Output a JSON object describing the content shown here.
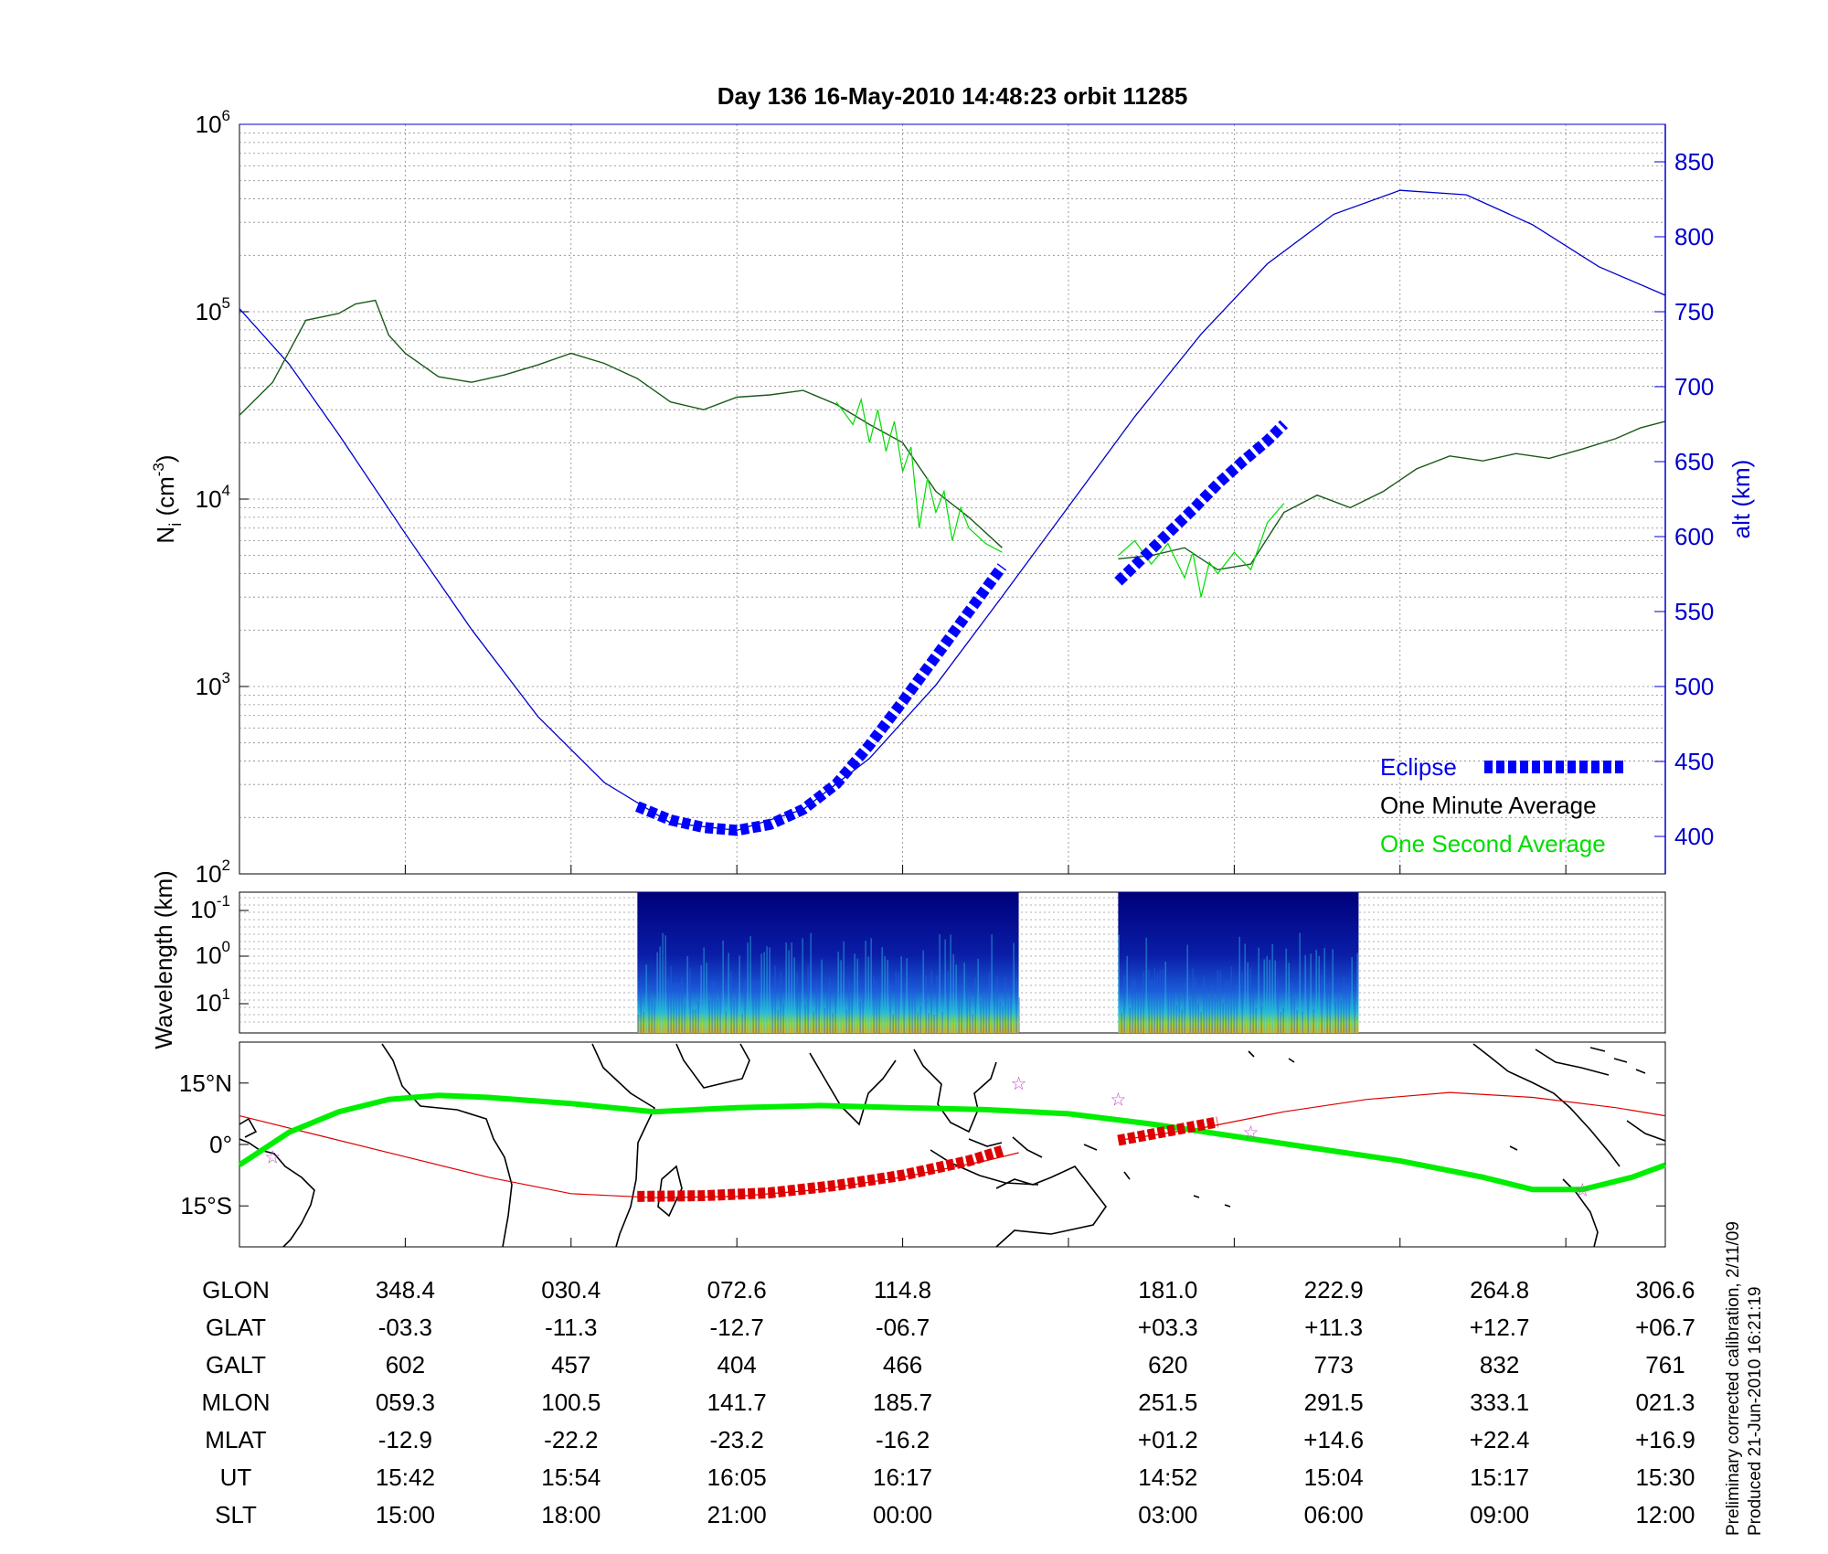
{
  "title": "Day 136  16-May-2010 14:48:23   orbit 11285",
  "footnote": {
    "line1": "Preliminary corrected calibration, 2/11/09",
    "line2": "Produced 21-Jun-2010 16:21:19"
  },
  "colors": {
    "altitude": "#0000cc",
    "eclipse": "#0000ff",
    "one_minute": "#000000",
    "one_second": "#00dd00",
    "track_red": "#dd0000",
    "track_green": "#00ee00",
    "stars": "#cc44cc"
  },
  "chart_data": [
    {
      "type": "line",
      "panel": "density",
      "ylabel": "N_i (cm^-3)",
      "ylabel_main": "N",
      "ylabel_sub": "i",
      "ylabel_unit": " (cm",
      "ylabel_exp": "-3",
      "ylabel_close": ")",
      "y_scale": "log",
      "ylim": [
        100,
        1000000
      ],
      "yticks": [
        {
          "base": "10",
          "exp": "2",
          "value": 100
        },
        {
          "base": "10",
          "exp": "3",
          "value": 1000
        },
        {
          "base": "10",
          "exp": "4",
          "value": 10000
        },
        {
          "base": "10",
          "exp": "5",
          "value": 100000
        },
        {
          "base": "10",
          "exp": "6",
          "value": 1000000
        }
      ],
      "y2label": "alt (km)",
      "y2lim": [
        375,
        875
      ],
      "y2ticks": [
        "400",
        "450",
        "500",
        "550",
        "600",
        "650",
        "700",
        "750",
        "800",
        "850"
      ],
      "xlim": [
        0,
        8.6
      ],
      "grid": true,
      "legend_position": "bottom-right",
      "legend": [
        "Eclipse",
        "One Minute Average",
        "One Second Average"
      ],
      "series": [
        {
          "role": "altitude",
          "x": [
            0,
            0.3,
            0.6,
            1,
            1.4,
            1.8,
            2.2,
            2.6,
            3,
            3.4,
            3.8,
            4.2,
            4.6,
            5,
            5.4,
            5.8,
            6.2,
            6.6,
            7,
            7.4,
            7.8,
            8.2,
            8.6
          ],
          "values": [
            752,
            715,
            668,
            602,
            538,
            480,
            436,
            409,
            404,
            418,
            452,
            501,
            560,
            620,
            680,
            735,
            782,
            815,
            831,
            828,
            808,
            780,
            761
          ]
        },
        {
          "role": "one_minute",
          "x": [
            0,
            0.2,
            0.4,
            0.6,
            0.7,
            0.82,
            0.9,
            1,
            1.2,
            1.4,
            1.6,
            1.8,
            2,
            2.2,
            2.4,
            2.6,
            2.8,
            3,
            3.2,
            3.4,
            3.6,
            3.8,
            4,
            4.2,
            4.4,
            4.6
          ],
          "values": [
            28000,
            42000,
            90000,
            98000,
            110000,
            115000,
            75000,
            60000,
            45000,
            42000,
            46000,
            52000,
            60000,
            53000,
            44000,
            33000,
            30000,
            35000,
            36000,
            38000,
            32000,
            25000,
            20000,
            11000,
            8000,
            5500
          ]
        },
        {
          "role": "one_minute",
          "x": [
            5.3,
            5.5,
            5.7,
            5.9,
            6.1,
            6.3,
            6.5,
            6.7,
            6.9,
            7.1,
            7.3,
            7.5,
            7.7,
            7.9,
            8.1,
            8.3,
            8.45,
            8.6
          ],
          "values": [
            4800,
            5000,
            5500,
            4200,
            4500,
            8500,
            10500,
            9000,
            11000,
            14500,
            17000,
            16000,
            17500,
            16500,
            18500,
            21000,
            24000,
            26000
          ]
        },
        {
          "role": "one_second",
          "x": [
            3.6,
            3.7,
            3.75,
            3.8,
            3.85,
            3.9,
            3.95,
            4,
            4.05,
            4.1,
            4.15,
            4.2,
            4.25,
            4.3,
            4.35,
            4.4,
            4.5,
            4.6
          ],
          "values": [
            33000,
            25000,
            34000,
            20000,
            30000,
            18000,
            26000,
            14000,
            19000,
            7000,
            13000,
            8500,
            11000,
            6000,
            9000,
            7000,
            5800,
            5200
          ]
        },
        {
          "role": "one_second",
          "x": [
            5.3,
            5.4,
            5.5,
            5.6,
            5.7,
            5.75,
            5.8,
            5.85,
            5.9,
            6,
            6.1,
            6.2,
            6.3
          ],
          "values": [
            5000,
            6000,
            4500,
            5800,
            3800,
            5200,
            3000,
            4600,
            4000,
            5200,
            4200,
            7500,
            9500
          ]
        },
        {
          "role": "eclipse",
          "x": [
            2.4,
            2.6,
            2.8,
            3,
            3.2,
            3.4,
            3.6,
            3.8,
            4,
            4.2,
            4.4,
            4.6
          ],
          "values": [
            420,
            411,
            406,
            404,
            408,
            418,
            435,
            461,
            490,
            520,
            550,
            580
          ]
        },
        {
          "role": "eclipse",
          "x": [
            5.3,
            5.45,
            5.6,
            5.75,
            5.9,
            6.05,
            6.2,
            6.3
          ],
          "values": [
            570,
            586,
            602,
            618,
            635,
            650,
            664,
            675
          ]
        }
      ]
    },
    {
      "type": "heatmap",
      "panel": "spectrogram",
      "ylabel": "Wavelength (km)",
      "y_scale": "log",
      "yticks": [
        {
          "base": "10",
          "exp": "-1"
        },
        {
          "base": "10",
          "exp": "0"
        },
        {
          "base": "10",
          "exp": "1"
        }
      ],
      "blocks_x": [
        [
          2.4,
          4.7
        ],
        [
          5.3,
          6.75
        ]
      ]
    },
    {
      "type": "line",
      "panel": "map",
      "yticks": [
        "15°N",
        "0°",
        "15°S"
      ],
      "ylim": [
        -25,
        25
      ],
      "xlim": [
        0,
        8.6
      ],
      "series": [
        {
          "role": "red_track",
          "x": [
            0,
            0.5,
            1,
            1.5,
            2,
            2.5,
            3,
            3.5,
            4,
            4.5,
            4.7
          ],
          "values": [
            7,
            2,
            -3,
            -8,
            -12,
            -13,
            -12.7,
            -11,
            -8,
            -4,
            -2
          ]
        },
        {
          "role": "red_track",
          "x": [
            5.3,
            5.8,
            6.3,
            6.8,
            7.3,
            7.8,
            8.3,
            8.6
          ],
          "values": [
            1,
            4,
            8,
            11,
            12.7,
            11.5,
            9,
            7
          ]
        },
        {
          "role": "green_track",
          "x": [
            0,
            0.3,
            0.6,
            0.9,
            1.2,
            1.5,
            2,
            2.5,
            3,
            3.5,
            4,
            4.5,
            5,
            5.5,
            6,
            6.5,
            7,
            7.5,
            7.8,
            8.1,
            8.4,
            8.6
          ],
          "values": [
            -5,
            3,
            8,
            11,
            12,
            11.5,
            10,
            8,
            9,
            9.5,
            9,
            8.5,
            7.5,
            5,
            2,
            -1,
            -4,
            -8,
            -11,
            -11,
            -8,
            -5
          ]
        },
        {
          "role": "red_bold",
          "x": [
            2.4,
            2.8,
            3.2,
            3.6,
            4,
            4.4,
            4.6
          ],
          "values": [
            -12.7,
            -12.5,
            -11.8,
            -10,
            -7.5,
            -4,
            -1.5
          ]
        },
        {
          "role": "red_bold",
          "x": [
            5.3,
            5.5,
            5.7,
            5.9
          ],
          "values": [
            1,
            2.5,
            4,
            5.5
          ]
        }
      ],
      "stars": [
        {
          "x": 0.2,
          "y": -3
        },
        {
          "x": 4.7,
          "y": 15
        },
        {
          "x": 5.3,
          "y": 11
        },
        {
          "x": 6.1,
          "y": 3
        },
        {
          "x": 8.1,
          "y": -11
        }
      ]
    },
    {
      "type": "table",
      "panel": "orbit-ephemeris",
      "rows": [
        {
          "label": "GLON",
          "values": [
            "348.4",
            "030.4",
            "072.6",
            "114.8",
            "181.0",
            "222.9",
            "264.8",
            "306.6"
          ]
        },
        {
          "label": "GLAT",
          "values": [
            "-03.3",
            "-11.3",
            "-12.7",
            "-06.7",
            "+03.3",
            "+11.3",
            "+12.7",
            "+06.7"
          ]
        },
        {
          "label": "GALT",
          "values": [
            "602",
            "457",
            "404",
            "466",
            "620",
            "773",
            "832",
            "761"
          ]
        },
        {
          "label": "MLON",
          "values": [
            "059.3",
            "100.5",
            "141.7",
            "185.7",
            "251.5",
            "291.5",
            "333.1",
            "021.3"
          ]
        },
        {
          "label": "MLAT",
          "values": [
            "-12.9",
            "-22.2",
            "-23.2",
            "-16.2",
            "+01.2",
            "+14.6",
            "+22.4",
            "+16.9"
          ]
        },
        {
          "label": "UT",
          "values": [
            "15:42",
            "15:54",
            "16:05",
            "16:17",
            "14:52",
            "15:04",
            "15:17",
            "15:30"
          ]
        },
        {
          "label": "SLT",
          "values": [
            "15:00",
            "18:00",
            "21:00",
            "00:00",
            "03:00",
            "06:00",
            "09:00",
            "12:00"
          ]
        }
      ],
      "column_x": [
        1,
        2,
        3,
        4,
        5.6,
        6.6,
        7.6,
        8.6
      ]
    }
  ]
}
